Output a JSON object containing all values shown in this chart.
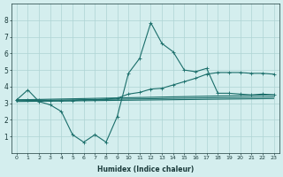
{
  "xlabel": "Humidex (Indice chaleur)",
  "background_color": "#d4eeee",
  "grid_color": "#aed4d4",
  "line_color": "#1a6e6a",
  "x_all": [
    0,
    1,
    2,
    3,
    4,
    5,
    6,
    7,
    8,
    9,
    10,
    11,
    12,
    13,
    14,
    15,
    16,
    17,
    18,
    19,
    20,
    21,
    22,
    23
  ],
  "line1_y": [
    3.2,
    3.8,
    3.1,
    2.9,
    2.5,
    1.1,
    0.65,
    1.1,
    0.65,
    2.2,
    4.8,
    5.7,
    7.85,
    6.6,
    6.1,
    5.0,
    4.9,
    5.1,
    3.6,
    3.6,
    3.55,
    3.5,
    3.55,
    3.5
  ],
  "line2_x": [
    0,
    1,
    2,
    3,
    4,
    5,
    6,
    7,
    8,
    9,
    10,
    11,
    12,
    13,
    14,
    15,
    16,
    17,
    18,
    19,
    20,
    21,
    22,
    23
  ],
  "line2_y": [
    3.2,
    3.2,
    3.2,
    3.15,
    3.15,
    3.15,
    3.2,
    3.2,
    3.25,
    3.3,
    3.55,
    3.65,
    3.85,
    3.9,
    4.1,
    4.3,
    4.5,
    4.75,
    4.85,
    4.85,
    4.85,
    4.8,
    4.8,
    4.75
  ],
  "regline1": [
    3.2,
    3.5
  ],
  "regline2": [
    3.15,
    3.38
  ],
  "regline3": [
    3.1,
    3.28
  ],
  "ylim": [
    0,
    9
  ],
  "xlim": [
    -0.5,
    23.5
  ],
  "yticks": [
    1,
    2,
    3,
    4,
    5,
    6,
    7,
    8
  ],
  "xticks": [
    0,
    1,
    2,
    3,
    4,
    5,
    6,
    7,
    8,
    9,
    10,
    11,
    12,
    13,
    14,
    15,
    16,
    17,
    18,
    19,
    20,
    21,
    22,
    23
  ]
}
